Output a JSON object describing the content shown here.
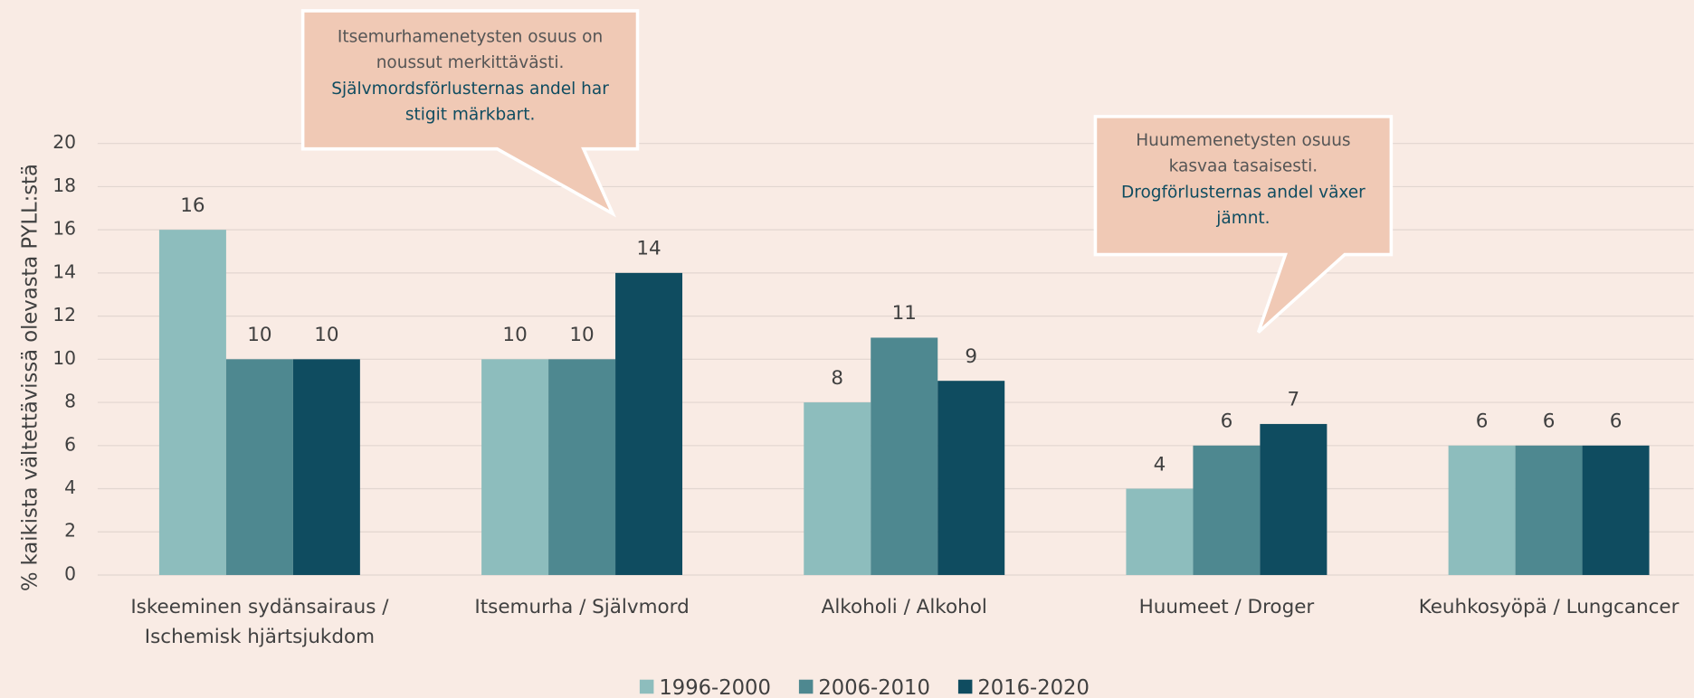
{
  "chart_data": {
    "type": "bar",
    "y_label": "% kaikista vältettävissä olevasta PYLL:stä",
    "categories": [
      "Iskeeminen sydänsairaus / Ischemisk hjärtsjukdom",
      "Itsemurha / Självmord",
      "Alkoholi / Alkohol",
      "Huumeet / Droger",
      "Keuhkosyöpä / Lungcancer"
    ],
    "series": [
      {
        "name": "1996-2000",
        "color": "#8dbdbd",
        "values": [
          16,
          10,
          8,
          4,
          6
        ]
      },
      {
        "name": "2006-2010",
        "color": "#4e8890",
        "values": [
          10,
          10,
          11,
          6,
          6
        ]
      },
      {
        "name": "2016-2020",
        "color": "#0f4c60",
        "values": [
          10,
          14,
          9,
          7,
          6
        ]
      }
    ],
    "ylim": [
      0,
      20
    ],
    "yticks": [
      0,
      2,
      4,
      6,
      8,
      10,
      12,
      14,
      16,
      18,
      20
    ],
    "grid": true,
    "legend": "bottom",
    "annotations": [
      {
        "fi": "Itsemurhamenetysten osuus on noussut merkittävästi.",
        "sv": "Självmordsförlusternas andel har stigit märkbart."
      },
      {
        "fi": "Huumemenetysten osuus kasvaa tasaisesti.",
        "sv": "Drogförlusternas andel växer jämnt."
      }
    ]
  }
}
